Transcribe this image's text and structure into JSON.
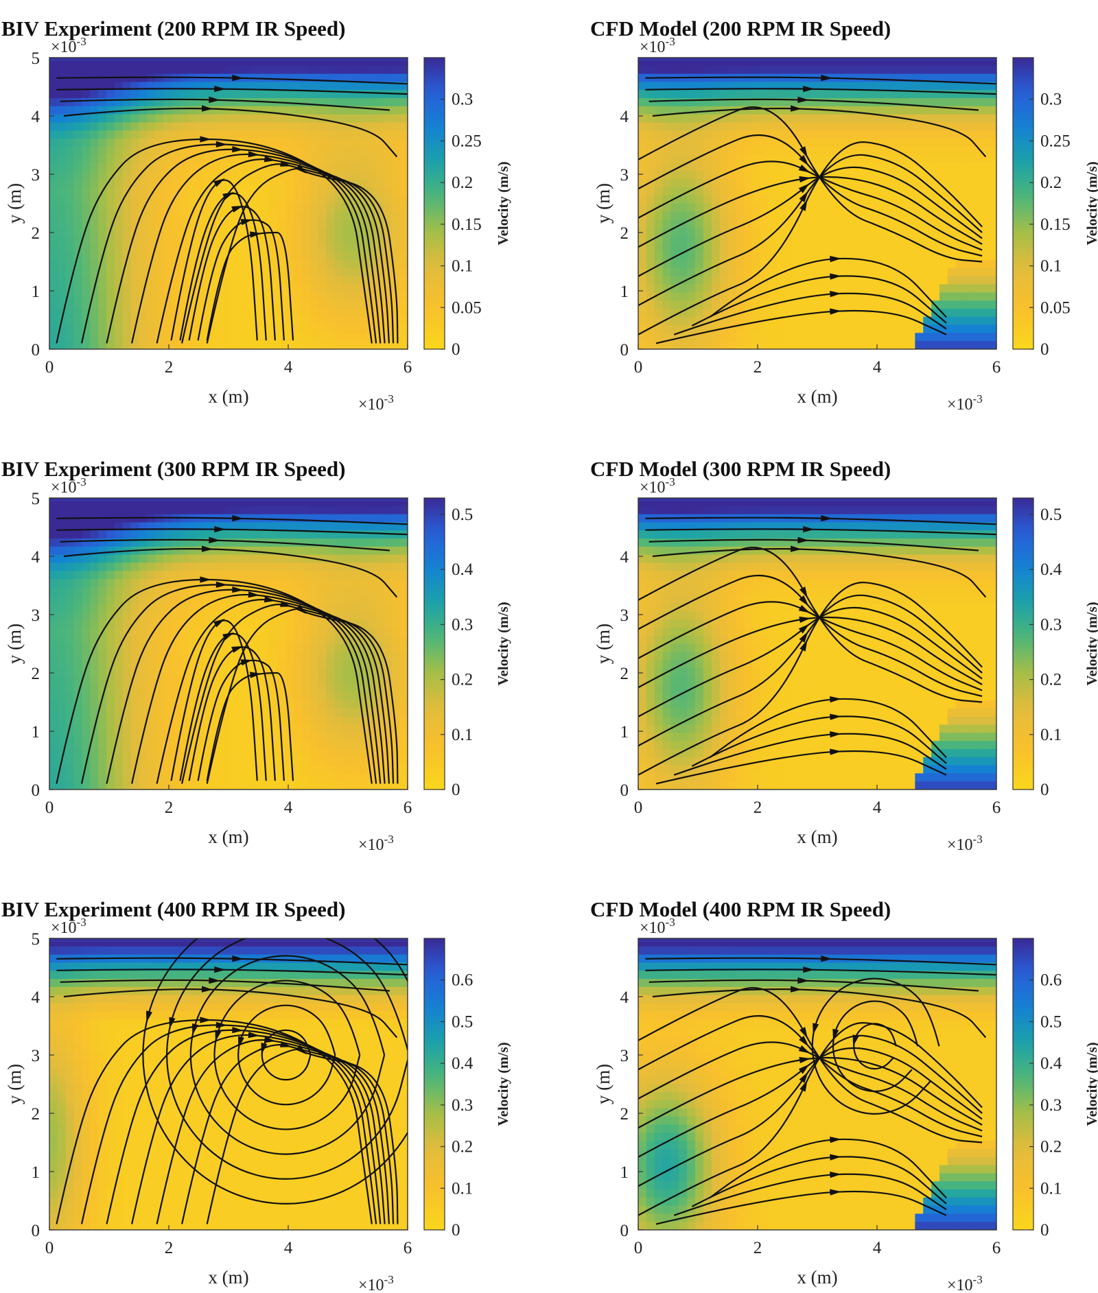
{
  "chart_data": [
    {
      "type": "contour+streamline",
      "title": "BIV Experiment (200 RPM IR Speed)",
      "variant": "experiment",
      "xlabel": "x (m)",
      "ylabel": "y (m)",
      "x_exponent": "×10",
      "x_exponent_power": "-3",
      "y_exponent": "×10",
      "y_exponent_power": "-3",
      "xlim": [
        0,
        6
      ],
      "ylim": [
        0,
        5
      ],
      "x_ticks": [
        "0",
        "2",
        "4",
        "6"
      ],
      "y_ticks": [
        "0",
        "1",
        "2",
        "3",
        "4",
        "5"
      ],
      "colorbar_label": "Velocity (m/s)",
      "colorbar_max": 0.35,
      "colorbar_ticks": [
        "0",
        "0.05",
        "0.1",
        "0.15",
        "0.2",
        "0.25",
        "0.3"
      ],
      "colorbar_tick_values": [
        0,
        0.05,
        0.1,
        0.15,
        0.2,
        0.25,
        0.3
      ],
      "colormap": "parula-reversed (yellow = low, dark blue = high)"
    },
    {
      "type": "contour+streamline",
      "title": "CFD Model (200 RPM IR Speed)",
      "variant": "cfd",
      "xlabel": "x (m)",
      "ylabel": "y (m)",
      "x_exponent": "×10",
      "x_exponent_power": "-3",
      "y_exponent": "×10",
      "y_exponent_power": "-3",
      "xlim": [
        0,
        6
      ],
      "ylim": [
        0,
        5
      ],
      "x_ticks": [
        "0",
        "2",
        "4",
        "6"
      ],
      "y_ticks": [
        "0",
        "1",
        "2",
        "3",
        "4"
      ],
      "colorbar_label": "Velocity (m/s)",
      "colorbar_max": 0.35,
      "colorbar_ticks": [
        "0",
        "0.05",
        "0.1",
        "0.15",
        "0.2",
        "0.25",
        "0.3"
      ],
      "colorbar_tick_values": [
        0,
        0.05,
        0.1,
        0.15,
        0.2,
        0.25,
        0.3
      ],
      "colormap": "parula-reversed (yellow = low, dark blue = high)"
    },
    {
      "type": "contour+streamline",
      "title": "BIV Experiment (300 RPM IR Speed)",
      "variant": "experiment",
      "xlabel": "x (m)",
      "ylabel": "y (m)",
      "x_exponent": "×10",
      "x_exponent_power": "-3",
      "y_exponent": "×10",
      "y_exponent_power": "-3",
      "xlim": [
        0,
        6
      ],
      "ylim": [
        0,
        5
      ],
      "x_ticks": [
        "0",
        "2",
        "4",
        "6"
      ],
      "y_ticks": [
        "0",
        "1",
        "2",
        "3",
        "4",
        "5"
      ],
      "colorbar_label": "Velocity (m/s)",
      "colorbar_max": 0.53,
      "colorbar_ticks": [
        "0",
        "0.1",
        "0.2",
        "0.3",
        "0.4",
        "0.5"
      ],
      "colorbar_tick_values": [
        0,
        0.1,
        0.2,
        0.3,
        0.4,
        0.5
      ],
      "colormap": "parula-reversed (yellow = low, dark blue = high)"
    },
    {
      "type": "contour+streamline",
      "title": "CFD Model (300 RPM IR Speed)",
      "variant": "cfd",
      "xlabel": "x (m)",
      "ylabel": "y (m)",
      "x_exponent": "×10",
      "x_exponent_power": "-3",
      "y_exponent": "×10",
      "y_exponent_power": "-3",
      "xlim": [
        0,
        6
      ],
      "ylim": [
        0,
        5
      ],
      "x_ticks": [
        "0",
        "2",
        "4",
        "6"
      ],
      "y_ticks": [
        "0",
        "1",
        "2",
        "3",
        "4"
      ],
      "colorbar_label": "Velocity (m/s)",
      "colorbar_max": 0.53,
      "colorbar_ticks": [
        "0",
        "0.1",
        "0.2",
        "0.3",
        "0.4",
        "0.5"
      ],
      "colorbar_tick_values": [
        0,
        0.1,
        0.2,
        0.3,
        0.4,
        0.5
      ],
      "colormap": "parula-reversed (yellow = low, dark blue = high)"
    },
    {
      "type": "contour+streamline",
      "title": "BIV Experiment (400 RPM IR Speed)",
      "variant": "experiment_vortex",
      "xlabel": "x (m)",
      "ylabel": "y (m)",
      "x_exponent": "×10",
      "x_exponent_power": "-3",
      "y_exponent": "×10",
      "y_exponent_power": "-3",
      "xlim": [
        0,
        6
      ],
      "ylim": [
        0,
        5
      ],
      "x_ticks": [
        "0",
        "2",
        "4",
        "6"
      ],
      "y_ticks": [
        "0",
        "1",
        "2",
        "3",
        "4",
        "5"
      ],
      "colorbar_label": "Velocity (m/s)",
      "colorbar_max": 0.7,
      "colorbar_ticks": [
        "0",
        "0.1",
        "0.2",
        "0.3",
        "0.4",
        "0.5",
        "0.6"
      ],
      "colorbar_tick_values": [
        0,
        0.1,
        0.2,
        0.3,
        0.4,
        0.5,
        0.6
      ],
      "colormap": "parula-reversed (yellow = low, dark blue = high)"
    },
    {
      "type": "contour+streamline",
      "title": "CFD Model (400 RPM IR Speed)",
      "variant": "cfd_vortex",
      "xlabel": "x (m)",
      "ylabel": "y (m)",
      "x_exponent": "×10",
      "x_exponent_power": "-3",
      "y_exponent": "×10",
      "y_exponent_power": "-3",
      "xlim": [
        0,
        6
      ],
      "ylim": [
        0,
        5
      ],
      "x_ticks": [
        "0",
        "2",
        "4",
        "6"
      ],
      "y_ticks": [
        "0",
        "1",
        "2",
        "3",
        "4"
      ],
      "colorbar_label": "Velocity (m/s)",
      "colorbar_max": 0.7,
      "colorbar_ticks": [
        "0",
        "0.1",
        "0.2",
        "0.3",
        "0.4",
        "0.5",
        "0.6"
      ],
      "colorbar_tick_values": [
        0,
        0.1,
        0.2,
        0.3,
        0.4,
        0.5,
        0.6
      ],
      "colormap": "parula-reversed (yellow = low, dark blue = high)"
    }
  ],
  "colors": {
    "stream": "#111111",
    "background": "#ffffff",
    "low_velocity": "#f8d71a",
    "mid_velocity": "#37b58a",
    "high_velocity": "#3a2d9e"
  }
}
